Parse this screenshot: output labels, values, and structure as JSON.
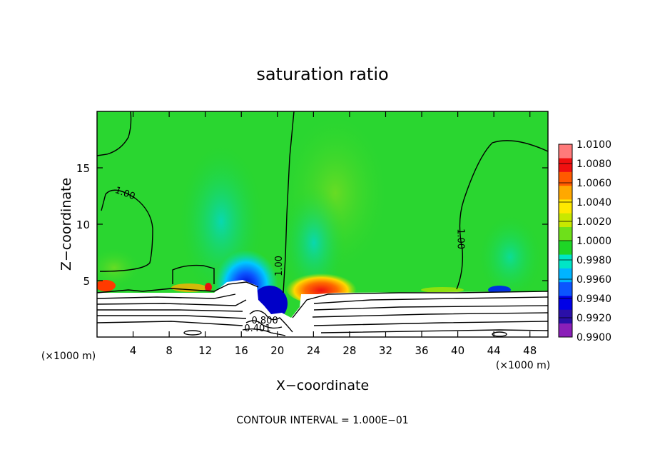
{
  "chart_data": {
    "type": "heatmap",
    "title": "saturation ratio",
    "xlabel": "X−coordinate",
    "ylabel": "Z−coordinate",
    "x_unit": "(×1000 m)",
    "y_unit": "(×1000 m)",
    "xlim": [
      0,
      50
    ],
    "ylim": [
      0,
      20
    ],
    "x_ticks": [
      4,
      8,
      12,
      16,
      20,
      24,
      28,
      32,
      36,
      40,
      44,
      48
    ],
    "y_ticks": [
      5,
      10,
      15
    ],
    "footer": "CONTOUR INTERVAL = 1.000E−01",
    "contour_labels": [
      {
        "text": "1.00",
        "x": 3.0,
        "z": 12.5,
        "angle": 20
      },
      {
        "text": "1.00",
        "x": 20.5,
        "z": 6.3,
        "angle": -90
      },
      {
        "text": "1.00",
        "x": 40.0,
        "z": 8.7,
        "angle": 90
      },
      {
        "text": "0.800",
        "x": 18.6,
        "z": 1.2,
        "angle": 0
      },
      {
        "text": "0.401",
        "x": 17.8,
        "z": 0.5,
        "angle": 0
      }
    ],
    "colorbar": {
      "min": 0.99,
      "max": 1.01,
      "labels": [
        "1.0100",
        "1.0080",
        "1.0060",
        "1.0040",
        "1.0020",
        "1.0000",
        "0.9980",
        "0.9960",
        "0.9940",
        "0.9920",
        "0.9900"
      ],
      "colors": [
        "#8a1fb8",
        "#2a0fa8",
        "#0000e6",
        "#0b55ff",
        "#00b4ff",
        "#00e6c6",
        "#1ed626",
        "#6ee01a",
        "#c8e800",
        "#ffe800",
        "#ffa800",
        "#ff5a00",
        "#f01010",
        "#ff7a7a"
      ]
    }
  }
}
